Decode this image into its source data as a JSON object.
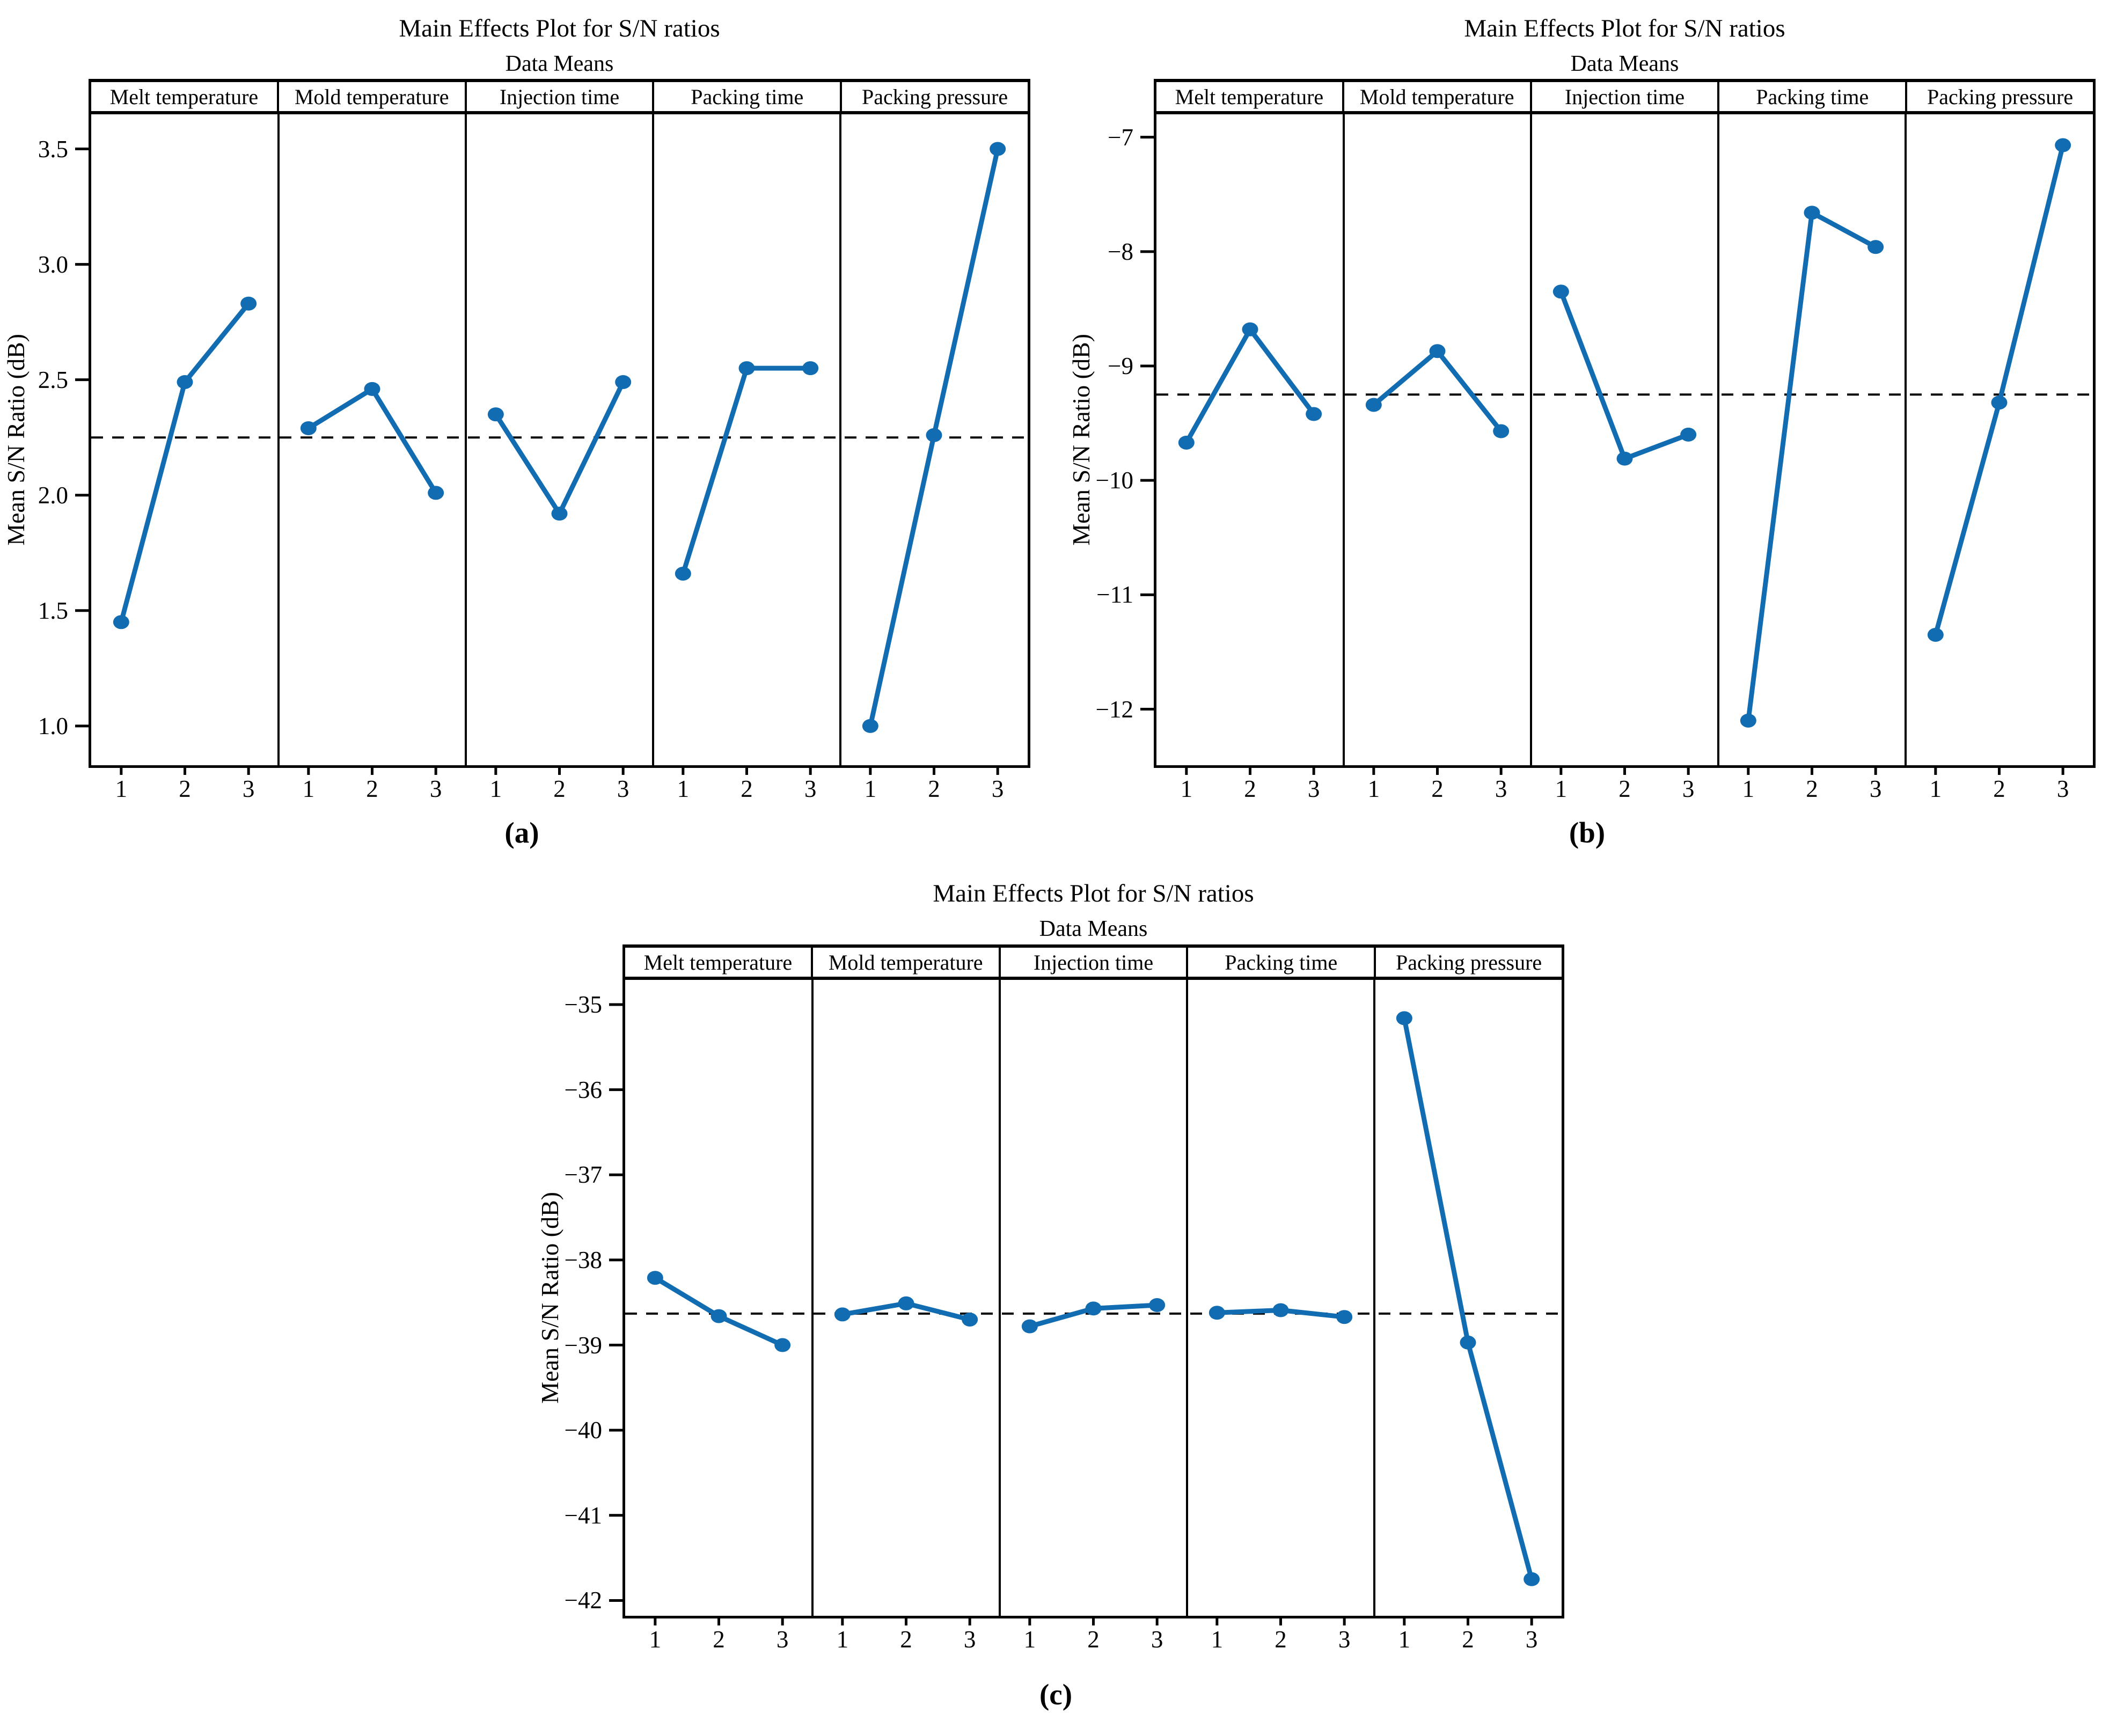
{
  "colors": {
    "line": "#116cb1",
    "mean_line": "#000000",
    "frame": "#000000"
  },
  "chart_data": [
    {
      "type": "line",
      "caption": "(a)",
      "title": "Main Effects Plot for S/N ratios",
      "subtitle": "Data Means",
      "ylabel": "Mean S/N Ratio (dB)",
      "xlabel": "",
      "categories": [
        "1",
        "2",
        "3"
      ],
      "series": [
        {
          "name": "Melt temperature",
          "values": [
            1.45,
            2.49,
            2.83
          ]
        },
        {
          "name": "Mold temperature",
          "values": [
            2.29,
            2.46,
            2.01
          ]
        },
        {
          "name": "Injection time",
          "values": [
            2.35,
            1.92,
            2.49
          ]
        },
        {
          "name": "Packing time",
          "values": [
            1.66,
            2.55,
            2.55
          ]
        },
        {
          "name": "Packing pressure",
          "values": [
            1.0,
            2.26,
            3.5
          ]
        }
      ],
      "mean_line": 2.25,
      "ytick_labels": [
        "3.5",
        "3.0",
        "2.5",
        "2.0",
        "1.5",
        "1.0"
      ],
      "ytick_values": [
        3.5,
        3.0,
        2.5,
        2.0,
        1.5,
        1.0
      ],
      "ylim": [
        0.83,
        3.65
      ],
      "grid": false,
      "legend": "none"
    },
    {
      "type": "line",
      "caption": "(b)",
      "title": "Main Effects Plot for S/N ratios",
      "subtitle": "Data Means",
      "ylabel": "Mean S/N Ratio (dB)",
      "xlabel": "",
      "categories": [
        "1",
        "2",
        "3"
      ],
      "series": [
        {
          "name": "Melt temperature",
          "values": [
            -9.67,
            -8.68,
            -9.42
          ]
        },
        {
          "name": "Mold temperature",
          "values": [
            -9.34,
            -8.87,
            -9.57
          ]
        },
        {
          "name": "Injection time",
          "values": [
            -8.35,
            -9.81,
            -9.6
          ]
        },
        {
          "name": "Packing time",
          "values": [
            -12.1,
            -7.66,
            -7.96
          ]
        },
        {
          "name": "Packing pressure",
          "values": [
            -11.35,
            -9.32,
            -7.07
          ]
        }
      ],
      "mean_line": -9.25,
      "ytick_labels": [
        "−7",
        "−8",
        "−9",
        "−10",
        "−11",
        "−12"
      ],
      "ytick_values": [
        -7,
        -8,
        -9,
        -10,
        -11,
        -12
      ],
      "ylim": [
        -12.49,
        -6.8
      ],
      "grid": false,
      "legend": "none"
    },
    {
      "type": "line",
      "caption": "(c)",
      "title": "Main Effects Plot for S/N ratios",
      "subtitle": "Data Means",
      "ylabel": "Mean S/N Ratio (dB)",
      "xlabel": "",
      "categories": [
        "1",
        "2",
        "3"
      ],
      "series": [
        {
          "name": "Melt temperature",
          "values": [
            -38.21,
            -38.66,
            -39.0
          ]
        },
        {
          "name": "Mold temperature",
          "values": [
            -38.64,
            -38.51,
            -38.7
          ]
        },
        {
          "name": "Injection time",
          "values": [
            -38.78,
            -38.57,
            -38.53
          ]
        },
        {
          "name": "Packing time",
          "values": [
            -38.62,
            -38.59,
            -38.67
          ]
        },
        {
          "name": "Packing pressure",
          "values": [
            -35.16,
            -38.97,
            -41.75
          ]
        }
      ],
      "mean_line": -38.63,
      "ytick_labels": [
        "−35",
        "−36",
        "−37",
        "−38",
        "−39",
        "−40",
        "−41",
        "−42"
      ],
      "ytick_values": [
        -35,
        -36,
        -37,
        -38,
        -39,
        -40,
        -41,
        -42
      ],
      "ylim": [
        -42.18,
        -34.71
      ],
      "grid": false,
      "legend": "none"
    }
  ]
}
